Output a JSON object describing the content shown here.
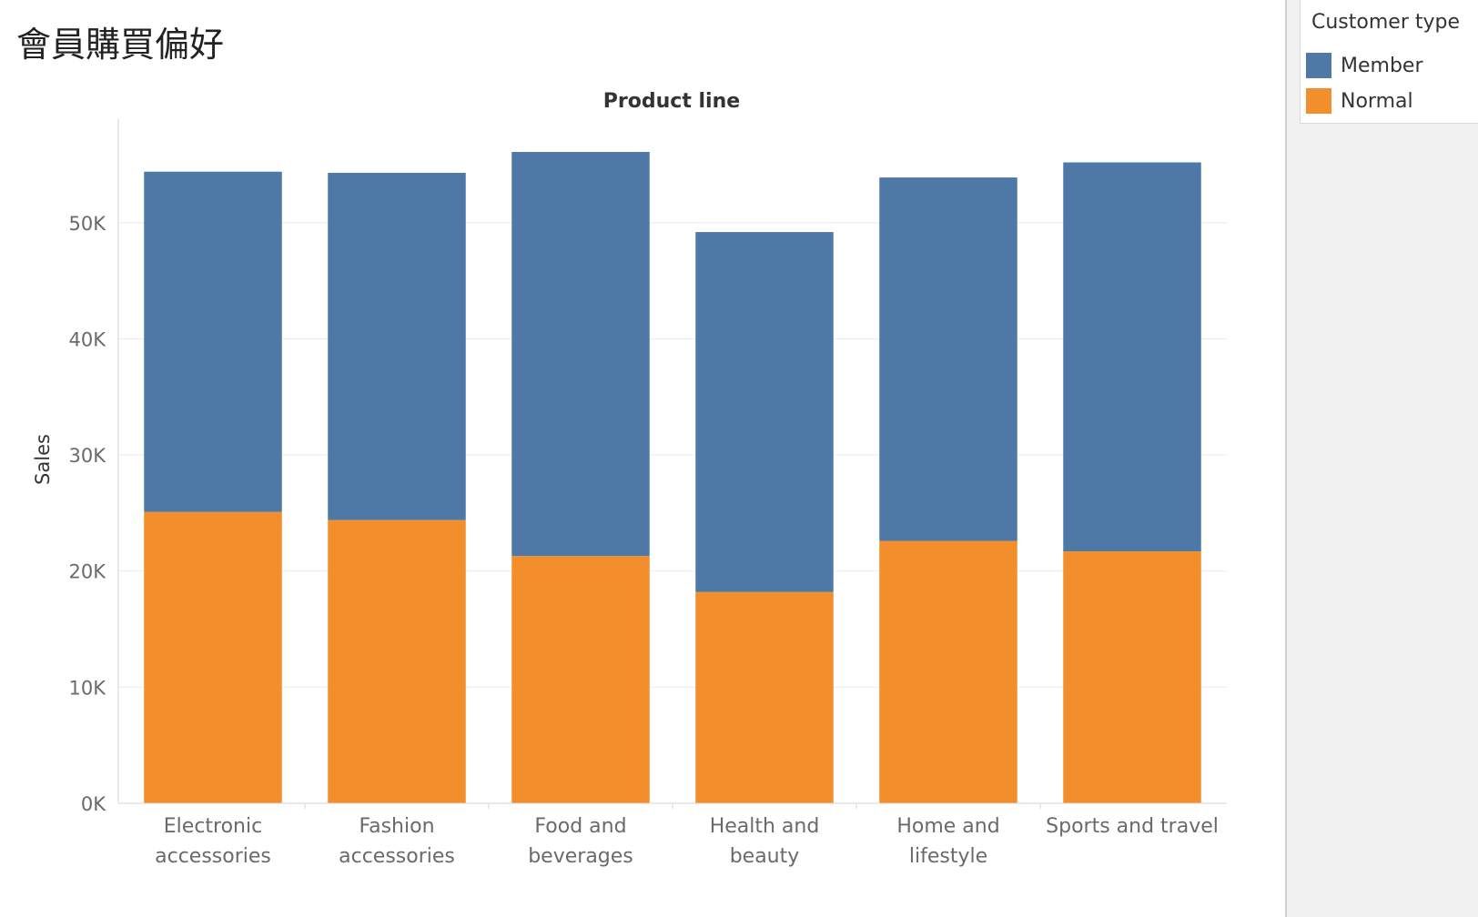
{
  "sheet_title": "會員購買偏好",
  "colors": {
    "member": "#4e79a7",
    "normal": "#f28e2b",
    "grid": "#ebebeb",
    "axis": "#d6d6d6"
  },
  "legend": {
    "title": "Customer type",
    "items": [
      {
        "label": "Member",
        "color": "#4e79a7"
      },
      {
        "label": "Normal",
        "color": "#f28e2b"
      }
    ]
  },
  "chart_data": {
    "type": "bar",
    "stacked": true,
    "title": "",
    "header": "Product line",
    "xlabel": "",
    "ylabel": "Sales",
    "ylim": [
      0,
      59000
    ],
    "yticks": [
      0,
      10000,
      20000,
      30000,
      40000,
      50000
    ],
    "ytick_labels": [
      "0K",
      "10K",
      "20K",
      "30K",
      "40K",
      "50K"
    ],
    "grid": true,
    "legend_position": "top-right",
    "categories": [
      [
        "Electronic",
        "accessories"
      ],
      [
        "Fashion",
        "accessories"
      ],
      [
        "Food and",
        "beverages"
      ],
      [
        "Health and",
        "beauty"
      ],
      [
        "Home and",
        "lifestyle"
      ],
      [
        "Sports and travel"
      ]
    ],
    "series": [
      {
        "name": "Normal",
        "color": "#f28e2b",
        "values": [
          25100,
          24400,
          21300,
          18200,
          22600,
          21700
        ]
      },
      {
        "name": "Member",
        "color": "#4e79a7",
        "values": [
          29300,
          29900,
          34800,
          31000,
          31300,
          33500
        ]
      }
    ]
  }
}
